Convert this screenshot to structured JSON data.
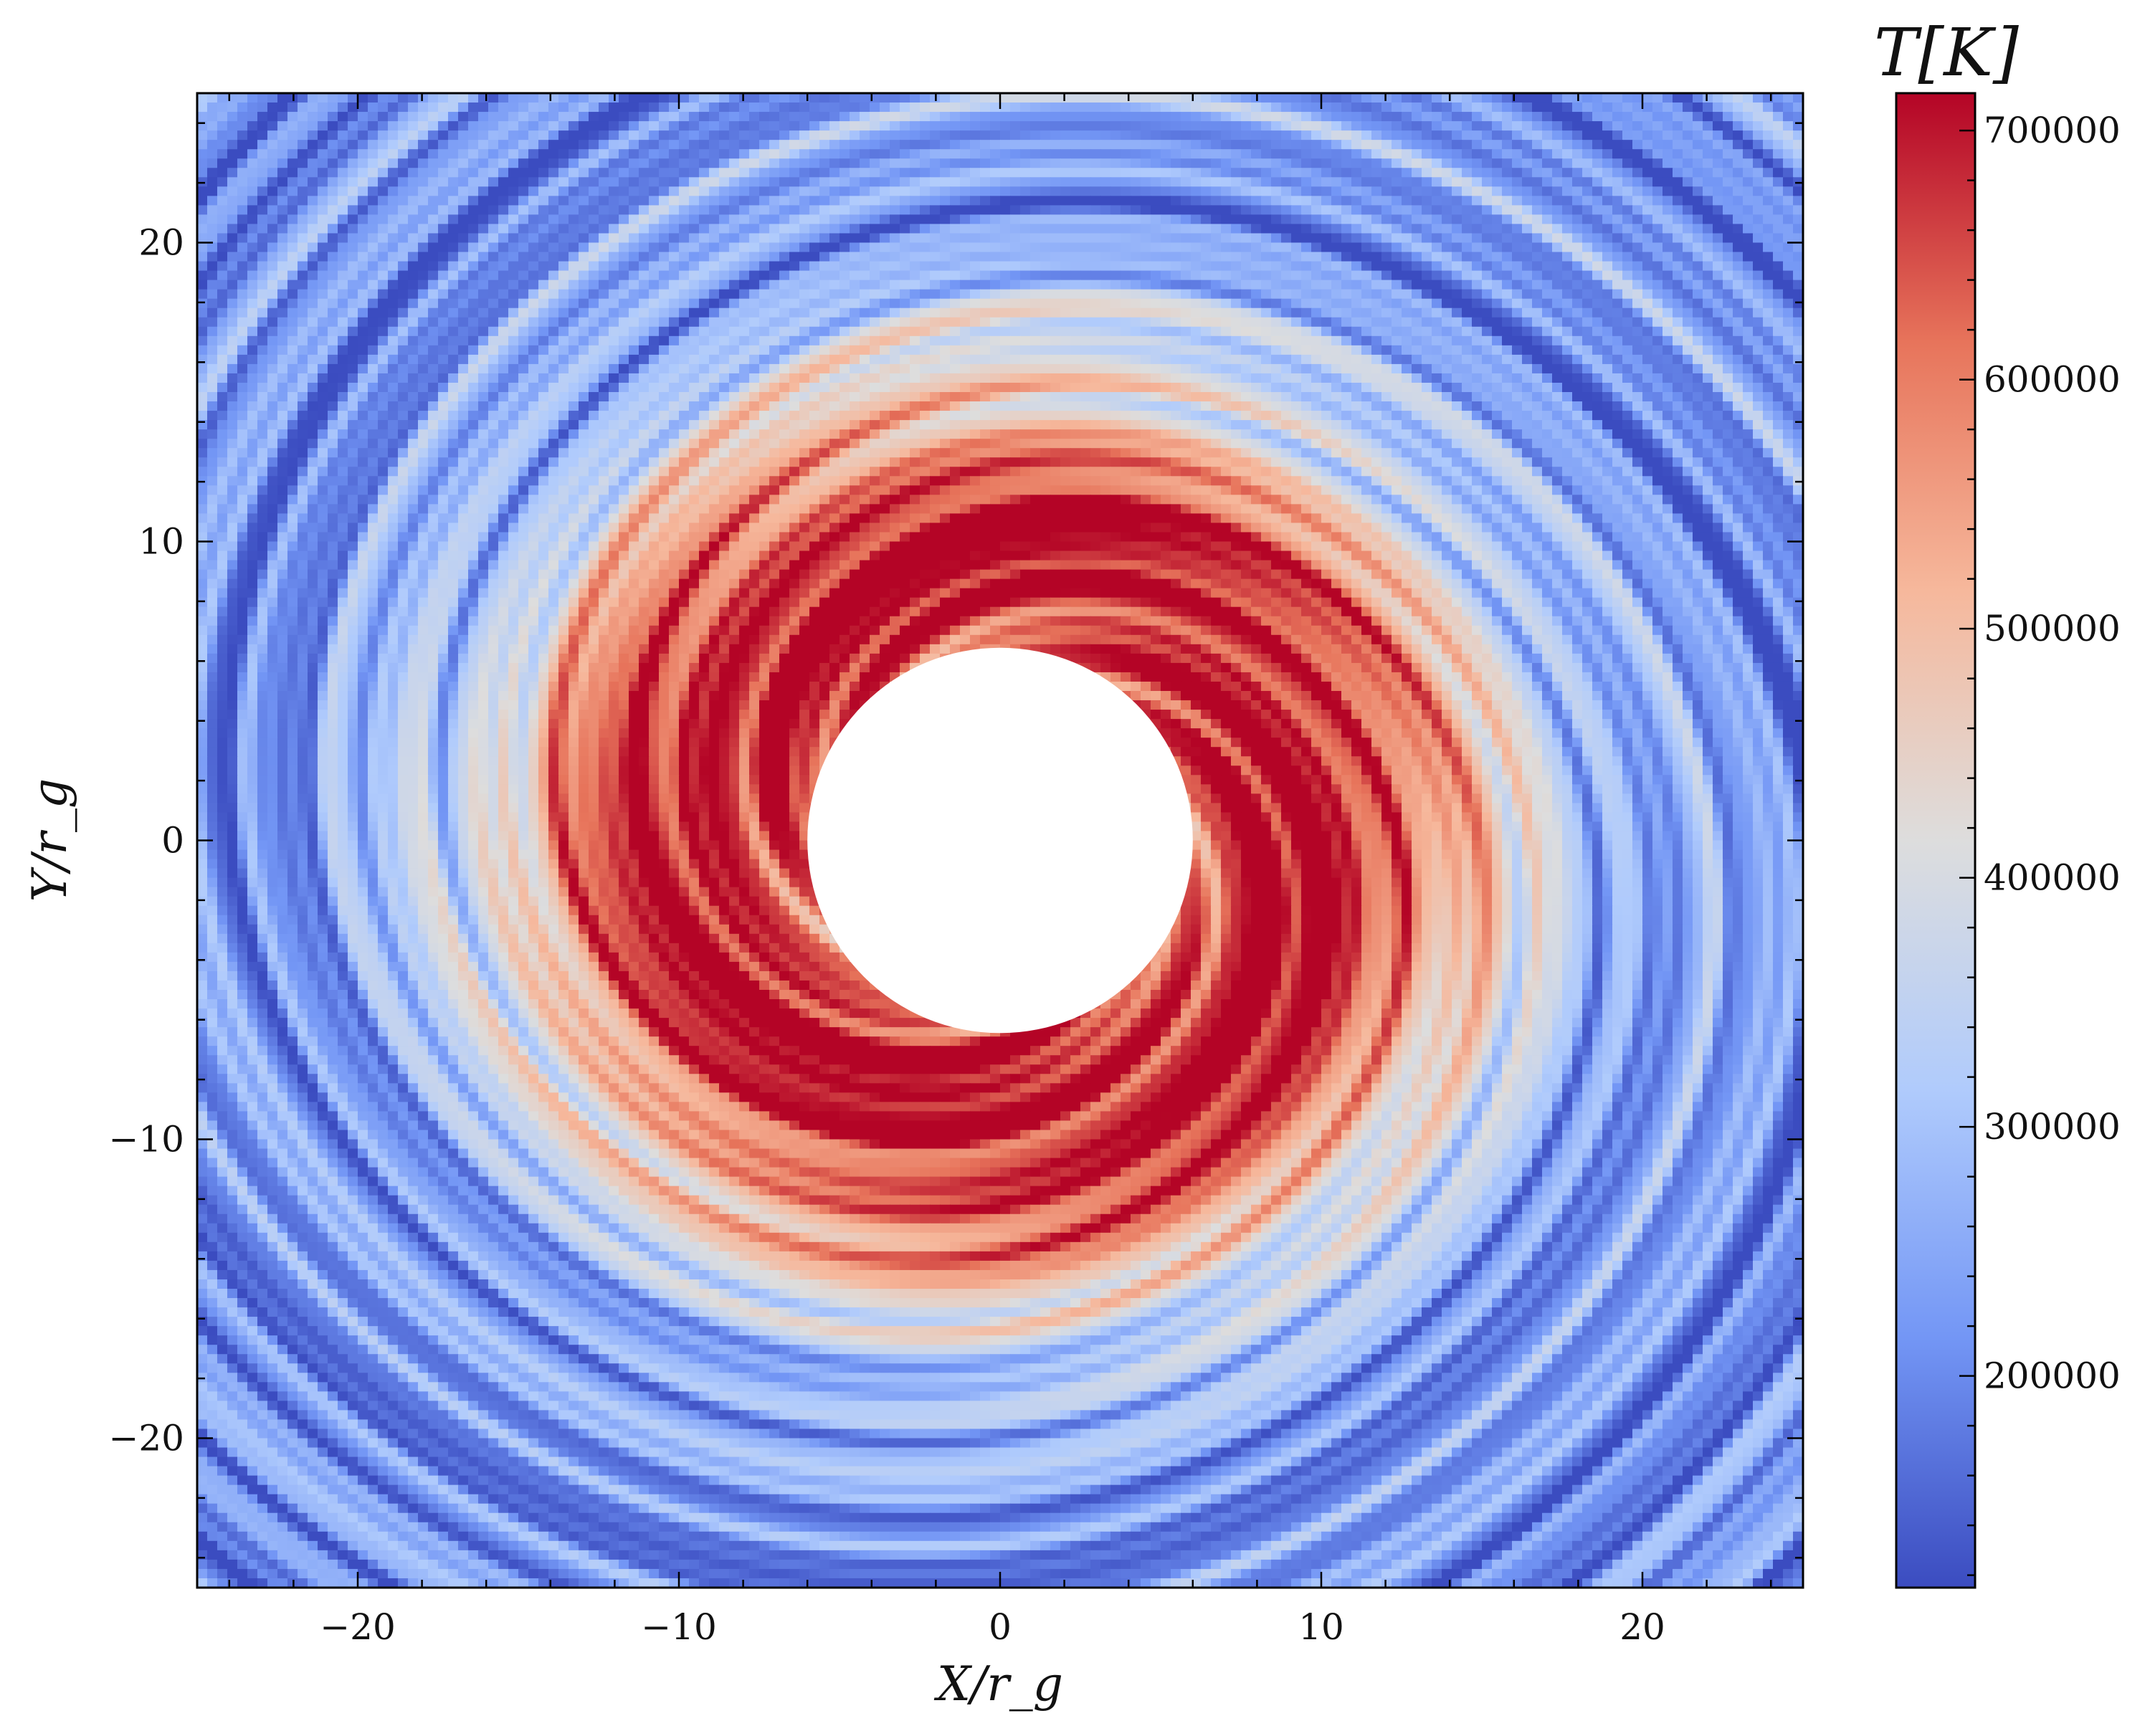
{
  "chart_data": {
    "type": "heatmap",
    "title": "",
    "xlabel": "X/r_g",
    "ylabel": "Y/r_g",
    "xlim": [
      -25,
      25
    ],
    "ylim": [
      -25,
      25
    ],
    "x_ticks": [
      -20,
      -10,
      0,
      10,
      20
    ],
    "y_ticks": [
      -20,
      -10,
      0,
      10,
      20
    ],
    "x_tick_labels": [
      "−20",
      "−10",
      "0",
      "10",
      "20"
    ],
    "y_tick_labels": [
      "−20",
      "−10",
      "0",
      "10",
      "20"
    ],
    "inner_hole_radius": 6,
    "colormap": "coolwarm",
    "colormap_stops": [
      "#3b4cc0",
      "#7396f5",
      "#b0cbfc",
      "#dddddd",
      "#f6b89c",
      "#e7745b",
      "#b40426"
    ],
    "colorbar": {
      "label": "T[K]",
      "range": [
        115000,
        715000
      ],
      "ticks": [
        200000,
        300000,
        400000,
        500000,
        600000,
        700000
      ],
      "tick_labels": [
        "200000",
        "300000",
        "400000",
        "500000",
        "600000",
        "700000"
      ]
    },
    "grid": false,
    "description_values": {
      "inner_peak_T": 715000,
      "outer_T": 250000
    }
  }
}
